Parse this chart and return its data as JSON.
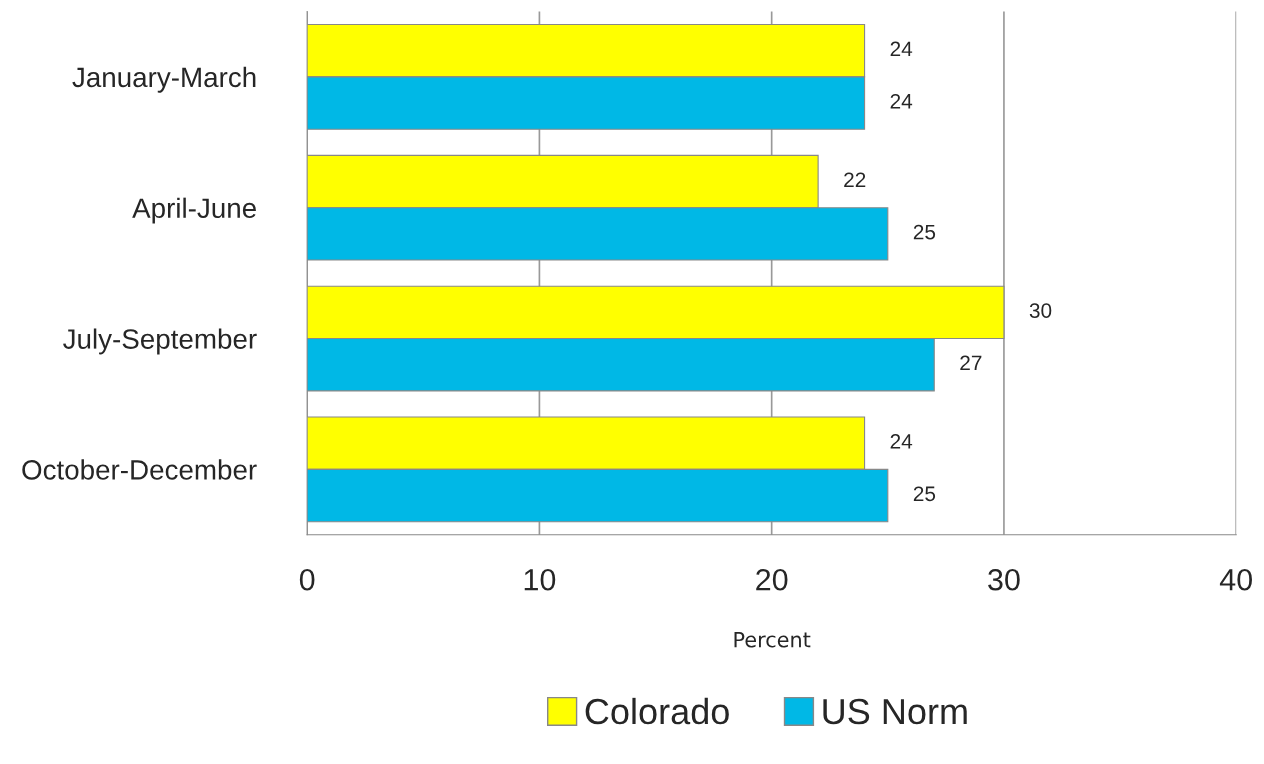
{
  "chart_data": {
    "type": "bar",
    "orientation": "horizontal",
    "xlabel": "Percent",
    "categories": [
      "January-March",
      "April-June",
      "July-September",
      "October-December"
    ],
    "series": [
      {
        "name": "Colorado",
        "color": "#ffff00",
        "values": [
          24,
          22,
          30,
          24
        ]
      },
      {
        "name": "US Norm",
        "color": "#00b8e6",
        "values": [
          24,
          25,
          27,
          25
        ]
      }
    ],
    "xlim": [
      0,
      40
    ],
    "xticks": [
      0,
      10,
      20,
      30,
      40
    ],
    "grid": "x",
    "legend": "bottom",
    "data_labels": true
  }
}
